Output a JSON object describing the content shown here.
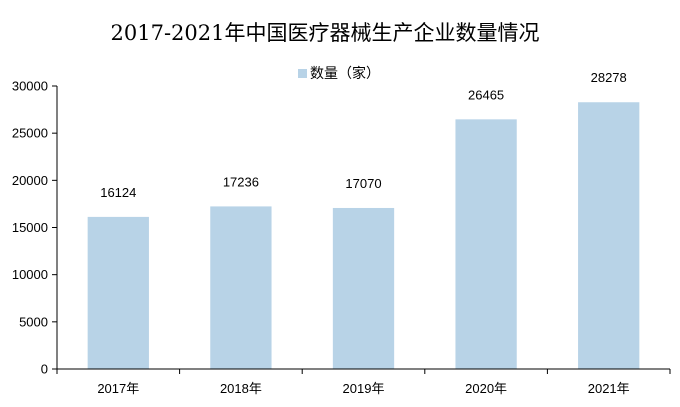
{
  "chart_data": {
    "type": "bar",
    "title": "2017-2021年中国医疗器械生产企业数量情况",
    "categories": [
      "2017年",
      "2018年",
      "2019年",
      "2020年",
      "2021年"
    ],
    "series": [
      {
        "name": "数量（家）",
        "values": [
          16124,
          17236,
          17070,
          26465,
          28278
        ],
        "color": "#b8d3e7"
      }
    ],
    "ylim": [
      0,
      30000
    ],
    "yticks": [
      0,
      5000,
      10000,
      15000,
      20000,
      25000,
      30000
    ],
    "grid": false,
    "legend": "top-center",
    "xlabel": "",
    "ylabel": ""
  }
}
